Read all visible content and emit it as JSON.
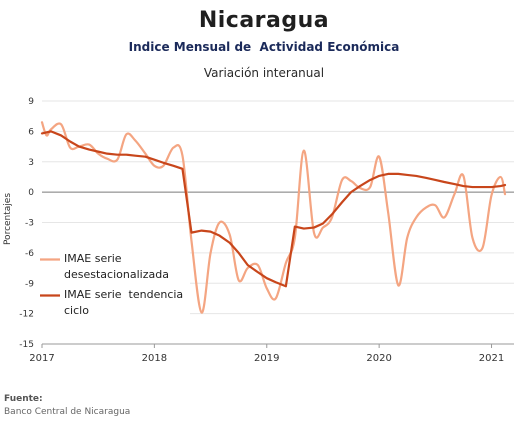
{
  "header": {
    "title": "Nicaragua",
    "subtitle": "Indice Mensual de  Actividad Económica",
    "subsubtitle": "Variación interanual"
  },
  "source": {
    "heading": "Fuente:",
    "text": "Banco Central de Nicaragua"
  },
  "colors": {
    "desestacionalizada": "#f4a582",
    "tendencia": "#c8461b",
    "grid": "#e6e6e6",
    "axis": "#9a9a9a"
  },
  "chart_data": {
    "type": "line",
    "ylabel": "Porcentajes",
    "ylim": [
      -15,
      9
    ],
    "yticks": [
      -15,
      -12,
      -9,
      -6,
      -3,
      0,
      3,
      6,
      9
    ],
    "xlim": [
      2017,
      2021.2
    ],
    "xticks": [
      2017,
      2018,
      2019,
      2020,
      2021
    ],
    "xtick_labels": [
      "2017",
      "2018",
      "2019",
      "2020",
      "2021"
    ],
    "grid": "horizontal",
    "legend_position": "lower-left",
    "series": [
      {
        "name": "IMAE serie desestacionalizada",
        "x": [
          2017.0,
          2017.04,
          2017.08,
          2017.17,
          2017.25,
          2017.33,
          2017.42,
          2017.5,
          2017.58,
          2017.67,
          2017.75,
          2017.83,
          2017.92,
          2018.0,
          2018.08,
          2018.17,
          2018.25,
          2018.33,
          2018.42,
          2018.5,
          2018.58,
          2018.67,
          2018.75,
          2018.83,
          2018.92,
          2019.0,
          2019.08,
          2019.17,
          2019.25,
          2019.33,
          2019.42,
          2019.5,
          2019.58,
          2019.67,
          2019.75,
          2019.83,
          2019.92,
          2020.0,
          2020.08,
          2020.17,
          2020.25,
          2020.33,
          2020.42,
          2020.5,
          2020.58,
          2020.67,
          2020.75,
          2020.83,
          2020.92,
          2021.0,
          2021.08,
          2021.12
        ],
        "values": [
          6.9,
          5.6,
          6.2,
          6.7,
          4.4,
          4.5,
          4.7,
          3.8,
          3.3,
          3.2,
          5.7,
          5.1,
          3.8,
          2.6,
          2.6,
          4.4,
          3.6,
          -4.8,
          -11.9,
          -6.0,
          -3.0,
          -4.2,
          -8.7,
          -7.5,
          -7.2,
          -9.5,
          -10.5,
          -7.0,
          -4.5,
          4.1,
          -4.0,
          -3.5,
          -2.5,
          1.2,
          1.1,
          0.4,
          0.5,
          3.5,
          -2.0,
          -9.2,
          -4.5,
          -2.5,
          -1.5,
          -1.3,
          -2.5,
          -0.2,
          1.6,
          -4.5,
          -5.5,
          -0.3,
          1.5,
          -0.2
        ]
      },
      {
        "name": "IMAE serie  tendencia ciclo",
        "x": [
          2017.0,
          2017.08,
          2017.17,
          2017.25,
          2017.33,
          2017.42,
          2017.5,
          2017.58,
          2017.67,
          2017.75,
          2017.83,
          2017.92,
          2018.0,
          2018.08,
          2018.17,
          2018.25,
          2018.33,
          2018.42,
          2018.5,
          2018.58,
          2018.67,
          2018.75,
          2018.83,
          2018.92,
          2019.0,
          2019.08,
          2019.17,
          2019.25,
          2019.33,
          2019.42,
          2019.5,
          2019.58,
          2019.67,
          2019.75,
          2019.83,
          2019.92,
          2020.0,
          2020.08,
          2020.17,
          2020.25,
          2020.33,
          2020.42,
          2020.5,
          2020.58,
          2020.67,
          2020.75,
          2020.83,
          2020.92,
          2021.0,
          2021.08,
          2021.12
        ],
        "values": [
          5.8,
          6.0,
          5.6,
          5.0,
          4.5,
          4.2,
          4.0,
          3.8,
          3.7,
          3.7,
          3.6,
          3.5,
          3.2,
          2.9,
          2.6,
          2.3,
          -4.0,
          -3.8,
          -3.9,
          -4.3,
          -5.0,
          -6.0,
          -7.2,
          -7.9,
          -8.5,
          -8.9,
          -9.3,
          -3.4,
          -3.6,
          -3.5,
          -3.1,
          -2.2,
          -1.0,
          0.0,
          0.6,
          1.2,
          1.6,
          1.8,
          1.8,
          1.7,
          1.6,
          1.4,
          1.2,
          1.0,
          0.8,
          0.6,
          0.5,
          0.5,
          0.5,
          0.6,
          0.7
        ]
      }
    ]
  }
}
